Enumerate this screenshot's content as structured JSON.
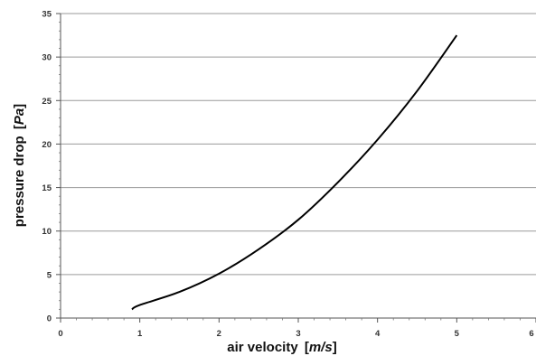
{
  "chart_data": {
    "type": "line",
    "title": "",
    "xlabel": "air velocity [m/s]",
    "xlabel_parts": {
      "name": "air velocity ",
      "lb": "[",
      "unit": "m/s",
      "rb": "]"
    },
    "ylabel": "pressure drop [Pa]",
    "ylabel_parts": {
      "name": "pressure drop ",
      "lb": "[",
      "unit": "Pa",
      "rb": "]"
    },
    "xlim": [
      0,
      6
    ],
    "ylim": [
      0,
      35
    ],
    "x_ticks": [
      0,
      1,
      2,
      3,
      4,
      5,
      6
    ],
    "x_tick_labels": [
      "0",
      "1",
      "2",
      "3",
      "4",
      "5",
      "6"
    ],
    "y_ticks": [
      0,
      5,
      10,
      15,
      20,
      25,
      30,
      35
    ],
    "y_tick_labels": [
      "0",
      "5",
      "10",
      "15",
      "20",
      "25",
      "30",
      "35"
    ],
    "grid": "horizontal",
    "legend": "none",
    "series": [
      {
        "color": "#000000",
        "x": [
          0.9,
          1.0,
          1.5,
          2.0,
          2.5,
          3.0,
          3.5,
          4.0,
          4.5,
          5.0
        ],
        "y": [
          1.0,
          1.5,
          3.0,
          5.1,
          7.9,
          11.3,
          15.6,
          20.5,
          26.1,
          32.5
        ]
      }
    ]
  }
}
